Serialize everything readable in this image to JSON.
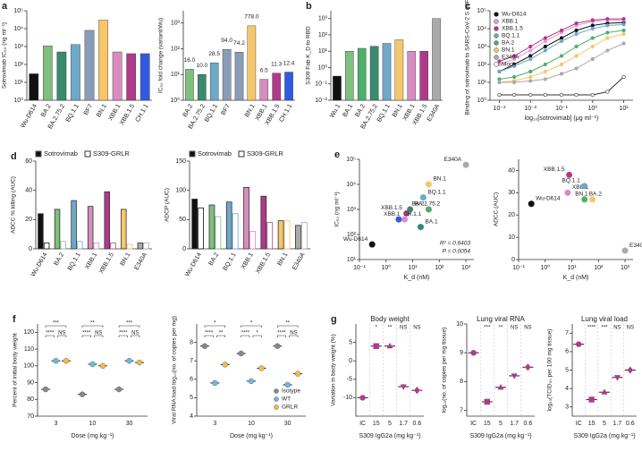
{
  "chart_data": [
    {
      "panel": "a",
      "type": "bar",
      "ylabel": "Sotrovimab IC₅₀ (ng ml⁻¹)",
      "ylog": true,
      "categories": [
        "Wu-D614",
        "BA.2",
        "BA.2.75.2",
        "BQ.1.1",
        "BF7",
        "BN.1",
        "XBB.1",
        "XBB.1.5",
        "CH.1.1"
      ],
      "values": [
        30,
        1100,
        500,
        1300,
        8000,
        30000,
        500,
        400,
        400
      ],
      "colors": [
        "#111111",
        "#7fbf7f",
        "#3a8a6e",
        "#6fa8c8",
        "#8a9db8",
        "#f5c66b",
        "#d98cc0",
        "#b03a8a",
        "#2f5be0"
      ],
      "ylim": [
        1,
        100000
      ],
      "yticks": [
        {
          "value": 1,
          "label": "10⁰"
        },
        {
          "value": 10,
          "label": "10¹"
        },
        {
          "value": 100,
          "label": "10²"
        },
        {
          "value": 1000,
          "label": "10³"
        },
        {
          "value": 10000,
          "label": "10⁴"
        },
        {
          "value": 100000,
          "label": "10⁵"
        }
      ]
    },
    {
      "type": "bar",
      "ylabel": "IC₅₀ fold change (variant/Wu)",
      "ylog": true,
      "categories": [
        "BA.2",
        "BA.2.75.2",
        "BQ.1.1",
        "BF7",
        null,
        "BN.1",
        "XBB.1",
        "XBB.1.5",
        "CH.1.1"
      ],
      "values": [
        16,
        10,
        28.5,
        94,
        74.2,
        778,
        6.5,
        11.3,
        12.4
      ],
      "value_labels": [
        "16.0",
        "10.0",
        "28.5",
        "94.0",
        "74.2",
        "778.0",
        "6.5",
        "11.3",
        "12.4"
      ],
      "colors": [
        "#7fbf7f",
        "#3a8a6e",
        "#6fa8c8",
        "#8a9db8",
        "#8a9db8",
        "#f5c66b",
        "#d98cc0",
        "#b03a8a",
        "#2f5be0"
      ],
      "ylim": [
        1,
        3000
      ],
      "yticks": [
        {
          "value": 1,
          "label": "10⁰"
        },
        {
          "value": 10,
          "label": "10¹"
        },
        {
          "value": 100,
          "label": "10²"
        },
        {
          "value": 1000,
          "label": "10³"
        }
      ]
    },
    {
      "panel": "b",
      "type": "bar",
      "ylabel": "S309 Fab K_D to RBD",
      "ylog": true,
      "categories": [
        "Wu.1",
        "BA.1",
        "BA.2",
        "BA.2.75.2",
        "BQ.1.1",
        "BN.1",
        "XBB.1",
        "XBB.1.5",
        "E340A"
      ],
      "values": [
        0.3,
        10,
        15,
        20,
        30,
        50,
        10,
        10,
        1000
      ],
      "colors": [
        "#111111",
        "#7fbf7f",
        "#4caf6a",
        "#3a8a6e",
        "#6fa8c8",
        "#f5c66b",
        "#d98cc0",
        "#b03a8a",
        "#aaaaaa"
      ],
      "ylim": [
        0.01,
        3000
      ],
      "yticks": [
        {
          "value": 0.01,
          "label": "10⁻²"
        },
        {
          "value": 0.1,
          "label": "10⁻¹"
        },
        {
          "value": 1,
          "label": "10⁰"
        },
        {
          "value": 10,
          "label": "10¹"
        },
        {
          "value": 100,
          "label": "10²"
        },
        {
          "value": 1000,
          "label": "10³"
        }
      ]
    },
    {
      "panel": "c",
      "type": "line",
      "xlabel": "log₁₀[sotrovimab] (μg ml⁻¹)",
      "ylabel": "Binding of sotrovimab to SARS-CoV-2 S (MFI)",
      "xlog": true,
      "ylog": true,
      "legend": "upper left",
      "x": [
        0.001,
        0.003,
        0.01,
        0.03,
        0.1,
        0.3,
        1,
        3,
        10
      ],
      "series": [
        {
          "name": "Wu-D614",
          "color": "#111111",
          "values": [
            40,
            100,
            300,
            1000,
            3000,
            8000,
            15000,
            20000,
            22000
          ]
        },
        {
          "name": "XBB.1",
          "color": "#e39bd1",
          "values": [
            100,
            200,
            600,
            2000,
            6000,
            15000,
            25000,
            30000,
            30000
          ]
        },
        {
          "name": "XBB.1.5",
          "color": "#b03a8a",
          "values": [
            150,
            300,
            1000,
            3000,
            8000,
            20000,
            30000,
            35000,
            35000
          ]
        },
        {
          "name": "BQ.1.1",
          "color": "#6fa8c8",
          "values": [
            40,
            80,
            200,
            600,
            2000,
            5000,
            10000,
            15000,
            17000
          ]
        },
        {
          "name": "BA.2",
          "color": "#4caf6a",
          "values": [
            15,
            20,
            40,
            100,
            300,
            1000,
            3000,
            6000,
            8000
          ]
        },
        {
          "name": "BN.1",
          "color": "#f5c66b",
          "values": [
            10,
            12,
            20,
            40,
            100,
            300,
            1000,
            3000,
            5000
          ]
        },
        {
          "name": "E340A",
          "color": "#aaaaaa",
          "values": [
            10,
            10,
            12,
            15,
            30,
            60,
            200,
            600,
            1500
          ]
        },
        {
          "name": "Mock",
          "color": "#ffffff",
          "values": [
            2,
            2,
            2,
            2,
            2,
            2,
            2,
            3,
            20
          ]
        }
      ],
      "xlim": [
        0.0005,
        20
      ],
      "xticks": [
        {
          "value": 0.001,
          "label": "10⁻³"
        },
        {
          "value": 0.01,
          "label": "10⁻²"
        },
        {
          "value": 0.1,
          "label": "10⁻¹"
        },
        {
          "value": 1,
          "label": "10⁰"
        },
        {
          "value": 10,
          "label": "10¹"
        }
      ],
      "ylim": [
        1,
        100000
      ],
      "yticks": [
        {
          "value": 1,
          "label": "10⁰"
        },
        {
          "value": 10,
          "label": "10¹"
        },
        {
          "value": 100,
          "label": "10²"
        },
        {
          "value": 1000,
          "label": "10³"
        },
        {
          "value": 10000,
          "label": "10⁴"
        },
        {
          "value": 100000,
          "label": "10⁵"
        }
      ]
    },
    {
      "panel": "d",
      "type": "grouped_bar",
      "ylabel": "ADCC % killing (AUC)",
      "legend": "top",
      "categories": [
        "Wu-D614",
        "BA.2",
        "BQ.1.1",
        "XBB.1",
        "XBB.1.5",
        "BN.1",
        "E340A"
      ],
      "colors": [
        "#111111",
        "#7fbf7f",
        "#6fa8c8",
        "#d98cc0",
        "#b03a8a",
        "#f5c66b",
        "#aaaaaa"
      ],
      "series": [
        {
          "name": "Sotrovimab",
          "color": "#111111",
          "values": [
            24,
            27,
            33,
            29,
            39,
            27,
            4
          ]
        },
        {
          "name": "S309-GRLR",
          "color": "#ffffff",
          "values": [
            4,
            5,
            5,
            4,
            4,
            3,
            4
          ]
        }
      ],
      "ylim": [
        0,
        60
      ],
      "yticks": [
        0,
        20,
        40,
        60
      ]
    },
    {
      "type": "grouped_bar",
      "ylabel": "ADCP (AUC)",
      "legend": "top",
      "categories": [
        "Wu-D614",
        "BA.2",
        "BQ.1.1",
        "XBB.1",
        "XBB.1.5",
        "BN.1",
        "E340A"
      ],
      "colors": [
        "#111111",
        "#7fbf7f",
        "#6fa8c8",
        "#d98cc0",
        "#b03a8a",
        "#f5c66b",
        "#aaaaaa"
      ],
      "series": [
        {
          "name": "Sotrovimab",
          "color": "#111111",
          "values": [
            85,
            75,
            80,
            105,
            90,
            48,
            40
          ]
        },
        {
          "name": "S309-GRLR",
          "color": "#ffffff",
          "values": [
            70,
            55,
            60,
            30,
            45,
            48,
            45
          ]
        }
      ],
      "ylim": [
        0,
        150
      ],
      "yticks": [
        0,
        50,
        100,
        150
      ]
    },
    {
      "panel": "e",
      "type": "scatter",
      "xlabel": "K_d (nM)",
      "ylabel": "IC₅₀ (ng ml⁻¹)",
      "xlog": true,
      "ylog": true,
      "categories": [
        "BN.1",
        "E340A",
        "BQ.1.1",
        "XBB.1.5",
        "BA.2.75.2",
        "BA.2",
        "CH.1.1",
        "XBB.1",
        "BA.1",
        "Wu-D614"
      ],
      "x": [
        40,
        1000,
        25,
        6,
        8,
        40,
        3,
        5,
        20,
        0.3
      ],
      "values": [
        10000,
        60000,
        3000,
        700,
        1000,
        1000,
        400,
        400,
        200,
        40
      ],
      "colors": [
        "#f5c66b",
        "#aaaaaa",
        "#6fa8c8",
        "#b03a8a",
        "#3a8a6e",
        "#4caf6a",
        "#2f5be0",
        "#d98cc0",
        "#2f8a7a",
        "#111111"
      ],
      "annotations": [
        "R² = 0.6403",
        "P = 0.0054"
      ],
      "xlim": [
        0.1,
        2000
      ],
      "xticks": [
        {
          "value": 0.1,
          "label": "10⁻¹"
        },
        {
          "value": 1,
          "label": "10⁰"
        },
        {
          "value": 10,
          "label": "10¹"
        },
        {
          "value": 100,
          "label": "10²"
        },
        {
          "value": 1000,
          "label": "10³"
        }
      ],
      "ylim": [
        10,
        100000
      ],
      "yticks": [
        {
          "value": 10,
          "label": "10¹"
        },
        {
          "value": 100,
          "label": "10²"
        },
        {
          "value": 1000,
          "label": "10³"
        },
        {
          "value": 10000,
          "label": "10⁴"
        },
        {
          "value": 100000,
          "label": "10⁵"
        }
      ]
    },
    {
      "type": "scatter",
      "xlabel": "K_d (nM)",
      "ylabel": "ADCC (AUC)",
      "xlog": true,
      "categories": [
        "Wu-D614",
        "XBB.1.5",
        "XBB.1",
        "BQ.1.1",
        "BA.2",
        "BN.1",
        "E340A"
      ],
      "x": [
        0.3,
        8,
        7,
        30,
        30,
        60,
        1000
      ],
      "values": [
        25,
        38,
        30,
        33,
        27,
        27,
        4
      ],
      "colors": [
        "#111111",
        "#b03a8a",
        "#d98cc0",
        "#6fa8c8",
        "#4caf6a",
        "#f5c66b",
        "#aaaaaa"
      ],
      "xlim": [
        0.1,
        2000
      ],
      "xticks": [
        {
          "value": 0.1,
          "label": "10⁻¹"
        },
        {
          "value": 1,
          "label": "10⁰"
        },
        {
          "value": 10,
          "label": "10¹"
        },
        {
          "value": 100,
          "label": "10²"
        },
        {
          "value": 1000,
          "label": "10³"
        }
      ],
      "ylim": [
        0,
        45
      ],
      "yticks": [
        0,
        10,
        20,
        30,
        40
      ]
    },
    {
      "panel": "f",
      "type": "dot",
      "xlabel": "Dose (mg kg⁻¹)",
      "ylabel": "Percent of initial body weight",
      "categories": [
        "3",
        "10",
        "30"
      ],
      "series": [
        {
          "name": "Isotype",
          "color": "#888888",
          "values": [
            86,
            83,
            86
          ]
        },
        {
          "name": "WT",
          "color": "#6fb7e0",
          "values": [
            103,
            101,
            103
          ]
        },
        {
          "name": "GRLR",
          "color": "#f5b84a",
          "values": [
            103,
            100,
            102
          ]
        }
      ],
      "brackets": [
        [
          "***",
          "****",
          "NS"
        ],
        [
          "**",
          "****",
          "NS"
        ],
        [
          "***",
          "****",
          "NS"
        ]
      ],
      "ylim": [
        70,
        125
      ],
      "yticks": [
        70,
        80,
        90,
        100,
        110,
        120
      ]
    },
    {
      "type": "dot",
      "xlabel": "Dose (mg kg⁻¹)",
      "ylabel": "Viral RNA load log₁₀(no. of copies per mg)",
      "legend": "lower right",
      "categories": [
        "3",
        "10",
        "30"
      ],
      "series": [
        {
          "name": "Isotype",
          "color": "#888888",
          "values": [
            7.8,
            7.4,
            7.8
          ]
        },
        {
          "name": "WT",
          "color": "#6fb7e0",
          "values": [
            5.8,
            5.9,
            5.7
          ]
        },
        {
          "name": "GRLR",
          "color": "#f5b84a",
          "values": [
            6.8,
            6.6,
            6.3
          ]
        }
      ],
      "brackets": [
        [
          "*",
          "****",
          "**"
        ],
        [
          "*",
          "****",
          "*"
        ],
        [
          "**",
          "****",
          "NS"
        ]
      ],
      "ylim": [
        4,
        9
      ],
      "yticks": [
        4,
        5,
        6,
        7,
        8
      ]
    },
    {
      "panel": "g",
      "type": "dot",
      "title": "Body weight",
      "xlabel": "S309 IgG2a (mg kg⁻¹)",
      "ylabel": "Variation in body weight (%)",
      "categories": [
        "IC",
        "15",
        "5",
        "1.7",
        "0.6"
      ],
      "values": [
        -10,
        4,
        4,
        -7,
        -8
      ],
      "color": "#b03a8a",
      "significance": [
        null,
        "*",
        "**",
        "NS",
        "NS"
      ],
      "ylim": [
        -15,
        10
      ],
      "yticks": [
        -10,
        -5,
        0,
        5
      ]
    },
    {
      "type": "dot",
      "title": "Lung viral RNA",
      "xlabel": "S309 IgG2a (mg kg⁻¹)",
      "ylabel": "log₁₀(no. of copies per mg tissue)",
      "categories": [
        "IC",
        "15",
        "5",
        "1.7",
        "0.6"
      ],
      "values": [
        9,
        7.3,
        7.8,
        8.2,
        8.5
      ],
      "color": "#b03a8a",
      "significance": [
        null,
        "***",
        "**",
        "NS",
        "NS"
      ],
      "ylim": [
        6.8,
        10
      ],
      "yticks": [
        7,
        8,
        9,
        10
      ]
    },
    {
      "type": "dot",
      "title": "Lung viral load",
      "xlabel": "S309 IgG2a (mg kg⁻¹)",
      "ylabel": "log₁₀(TCID₅₀ per 100 mg tissue)",
      "categories": [
        "IC",
        "15",
        "5",
        "1.7",
        "0.6"
      ],
      "values": [
        6.4,
        3.4,
        3.8,
        4.6,
        5.0
      ],
      "color": "#b03a8a",
      "significance": [
        null,
        "****",
        "***",
        "NS",
        "NS"
      ],
      "ylim": [
        2.5,
        7.5
      ],
      "yticks": [
        3,
        4,
        5,
        6,
        7
      ]
    }
  ]
}
